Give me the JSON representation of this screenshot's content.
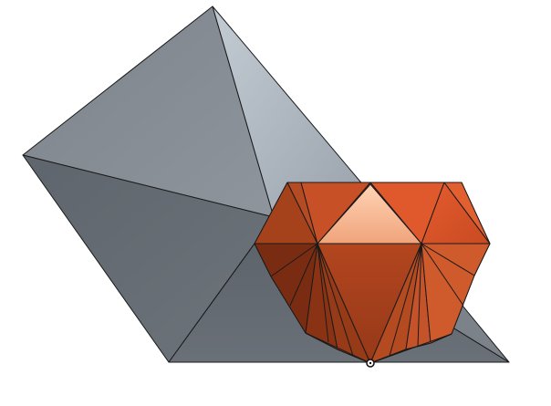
{
  "scene": {
    "background": "#ffffff",
    "edge_color": "#1a1a1a",
    "shapes": [
      {
        "name": "gray-pyramid",
        "color": "#8a9098"
      },
      {
        "name": "orange-gem",
        "color": "#c4552b"
      }
    ],
    "origin_marker": {
      "name": "origin-point-marker"
    }
  }
}
